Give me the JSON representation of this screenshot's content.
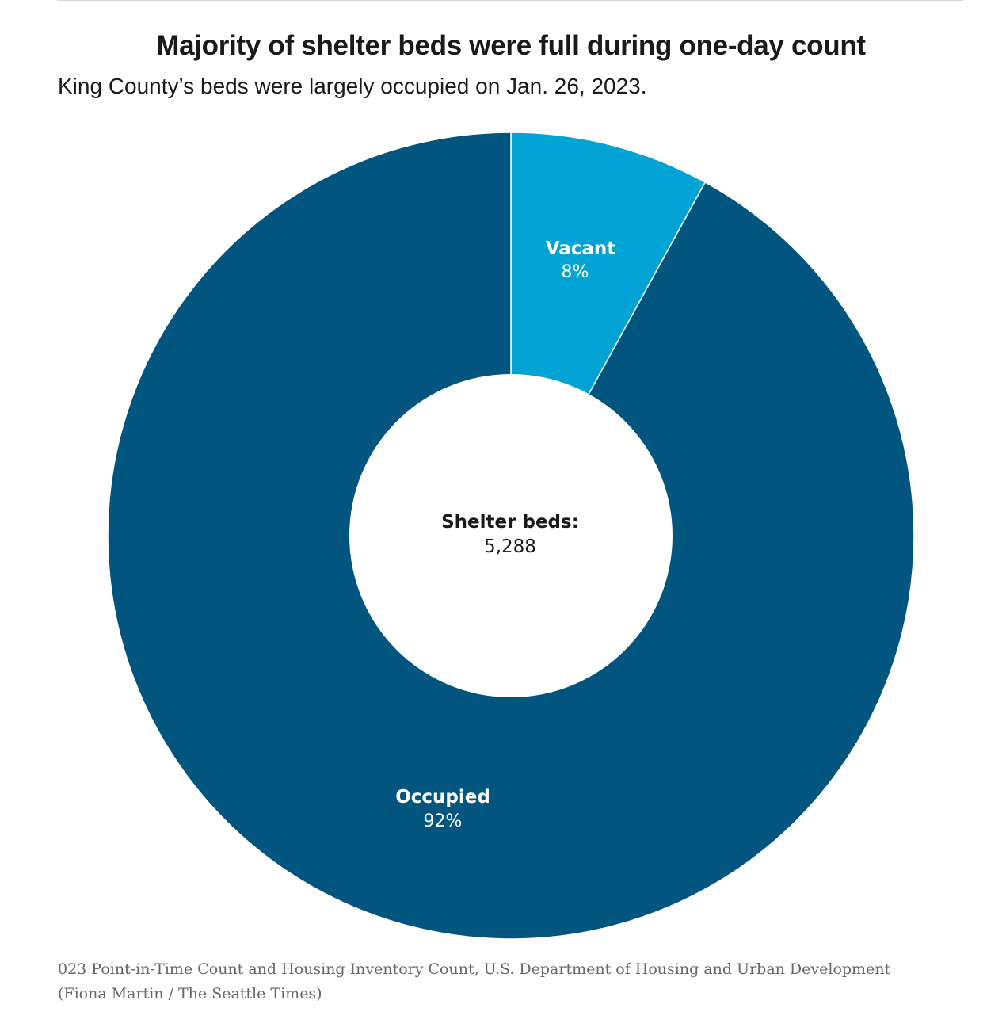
{
  "header": {
    "title": "Majority of shelter beds were full during one-day count",
    "subtitle": "King County’s beds were largely occupied on Jan. 26, 2023."
  },
  "chart_data": {
    "type": "pie",
    "title": "Majority of shelter beds were full during one-day count",
    "subtitle": "King County’s beds were largely occupied on Jan. 26, 2023.",
    "center_label": "Shelter beds:",
    "center_value": "5,288",
    "total": 5288,
    "slices": [
      {
        "name": "Vacant",
        "value": 8,
        "label": "8%",
        "color": "#00a3d4"
      },
      {
        "name": "Occupied",
        "value": 92,
        "label": "92%",
        "color": "#02557e"
      }
    ]
  },
  "footer": {
    "source_line1": "023 Point-in-Time Count and Housing Inventory Count, U.S. Department of Housing and Urban Development",
    "source_line2": "(Fiona Martin / The Seattle Times)"
  }
}
